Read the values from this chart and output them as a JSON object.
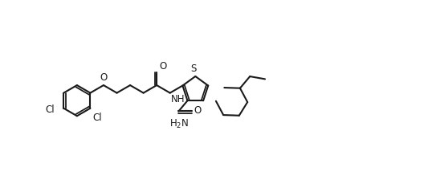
{
  "background_color": "#ffffff",
  "line_color": "#1a1a1a",
  "line_width": 1.5,
  "font_size": 8.5,
  "figsize": [
    5.28,
    2.14
  ],
  "dpi": 100,
  "xlim": [
    -0.05,
    5.33
  ],
  "ylim": [
    -0.05,
    2.19
  ]
}
